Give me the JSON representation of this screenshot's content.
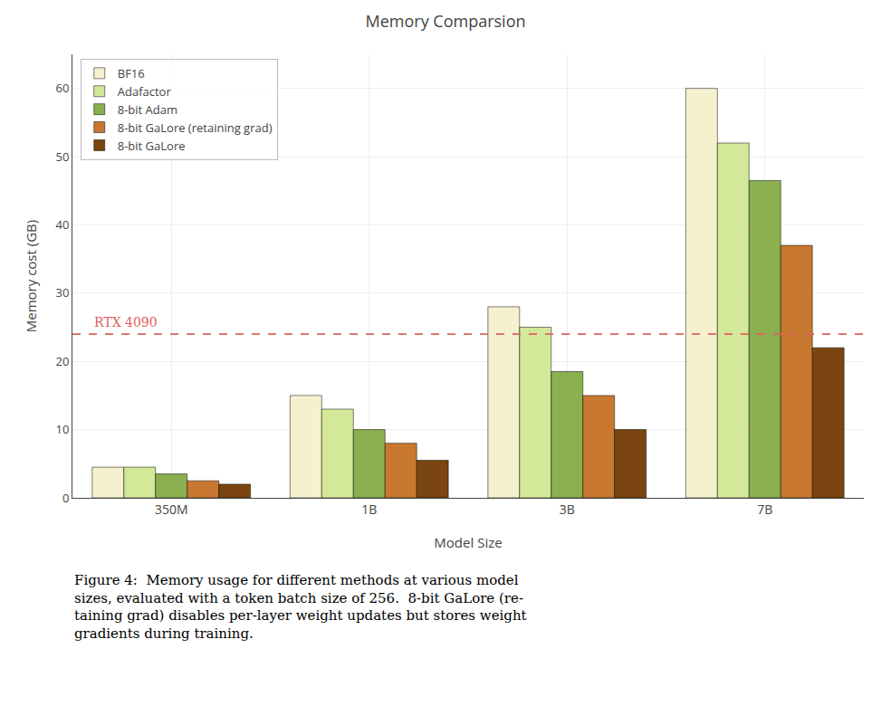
{
  "chart_data": {
    "type": "bar",
    "title": "Memory Comparsion",
    "xlabel": "Model Size",
    "ylabel": "Memory cost (GB)",
    "categories": [
      "350M",
      "1B",
      "3B",
      "7B"
    ],
    "series": [
      {
        "name": "BF16",
        "color": "#f5f0ce",
        "values": [
          4.5,
          15.0,
          28.0,
          60.0
        ]
      },
      {
        "name": "Adafactor",
        "color": "#d4e89a",
        "values": [
          4.5,
          13.0,
          25.0,
          52.0
        ]
      },
      {
        "name": "8-bit Adam",
        "color": "#8ab050",
        "values": [
          3.5,
          10.0,
          18.5,
          46.5
        ]
      },
      {
        "name": "8-bit GaLore (retaining grad)",
        "color": "#c87830",
        "values": [
          2.5,
          8.0,
          15.0,
          37.0
        ]
      },
      {
        "name": "8-bit GaLore",
        "color": "#7a4510",
        "values": [
          2.0,
          5.5,
          10.0,
          22.0
        ]
      }
    ],
    "ylim": [
      0,
      65
    ],
    "yticks": [
      0,
      10,
      20,
      30,
      40,
      50,
      60
    ],
    "grid": true,
    "legend": "upper left",
    "annotations": [
      {
        "text": "RTX 4090",
        "y": 24.0,
        "color": "#e06060",
        "line_style": "dashed"
      }
    ],
    "caption": "Figure 4:  Memory usage for different methods at various model\nsizes, evaluated with a token batch size of 256.  8-bit GaLore (re-\ntaining grad) disables per-layer weight updates but stores weight\ngradients during training."
  }
}
